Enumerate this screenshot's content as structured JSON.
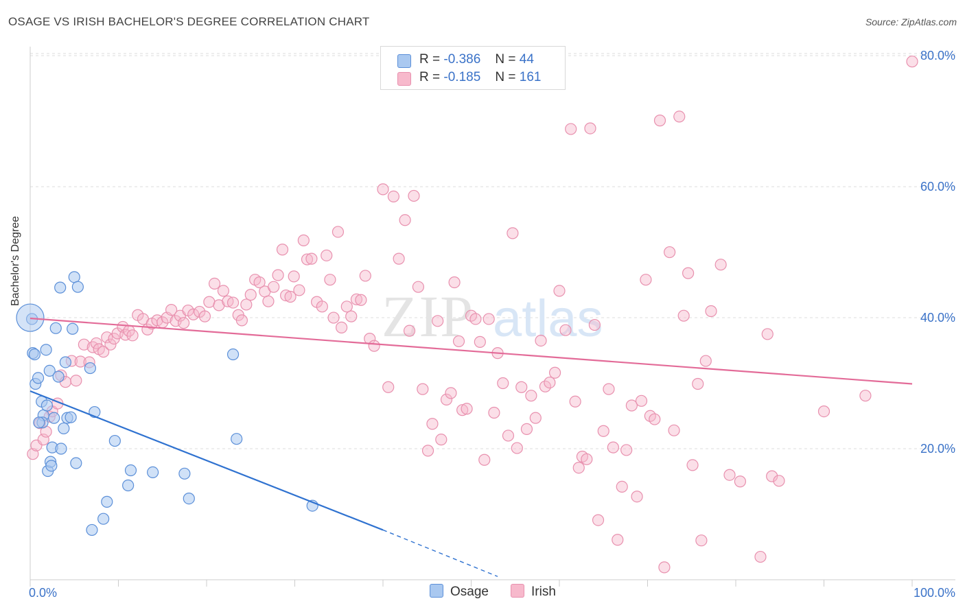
{
  "title": "OSAGE VS IRISH BACHELOR'S DEGREE CORRELATION CHART",
  "source": "Source: ZipAtlas.com",
  "watermark": {
    "zip": "ZIP",
    "atlas": "atlas"
  },
  "legend": {
    "r_label": "R =",
    "n_label": "N =",
    "osage": {
      "r": "-0.386",
      "n": "44"
    },
    "irish": {
      "r": "-0.185",
      "n": "161"
    }
  },
  "colors": {
    "osage_fill": "#a9c8f0",
    "osage_stroke": "#5b8fd8",
    "osage_line": "#2f72d0",
    "irish_fill": "#f7b9cc",
    "irish_stroke": "#e890ae",
    "irish_line": "#e36b98",
    "tick_label": "#3a72c8",
    "grid": "#dddddd"
  },
  "chart_data": {
    "type": "scatter",
    "title": "OSAGE VS IRISH BACHELOR'S DEGREE CORRELATION CHART",
    "xlabel": "",
    "ylabel": "Bachelor's Degree",
    "xlim": [
      0,
      100
    ],
    "ylim": [
      0,
      82
    ],
    "x_tick_labels": [
      "0.0%",
      "100.0%"
    ],
    "y_ticks": [
      20,
      40,
      60,
      80
    ],
    "y_tick_labels": [
      "20.0%",
      "40.0%",
      "60.0%",
      "80.0%"
    ],
    "grid": true,
    "series": [
      {
        "name": "Osage",
        "trend": {
          "x1": 0,
          "y1": 28.8,
          "x2": 40,
          "y2": 7.6,
          "dashed_to_x": 53,
          "dashed_to_y": 0.5
        },
        "points": [
          [
            0.2,
            39.8
          ],
          [
            0.3,
            34.6
          ],
          [
            0.6,
            29.9
          ],
          [
            0.9,
            30.8
          ],
          [
            1.3,
            27.2
          ],
          [
            1.5,
            25.1
          ],
          [
            1.4,
            24.0
          ],
          [
            1.8,
            35.1
          ],
          [
            1.9,
            26.6
          ],
          [
            2.0,
            16.6
          ],
          [
            2.2,
            31.9
          ],
          [
            2.3,
            18.0
          ],
          [
            2.4,
            17.4
          ],
          [
            2.5,
            20.2
          ],
          [
            2.7,
            24.7
          ],
          [
            2.9,
            38.4
          ],
          [
            3.2,
            31.0
          ],
          [
            3.4,
            44.6
          ],
          [
            3.5,
            20.0
          ],
          [
            3.8,
            23.1
          ],
          [
            4.0,
            33.2
          ],
          [
            4.2,
            24.7
          ],
          [
            4.6,
            24.8
          ],
          [
            4.8,
            38.3
          ],
          [
            5.0,
            46.2
          ],
          [
            5.2,
            17.8
          ],
          [
            5.4,
            44.7
          ],
          [
            6.8,
            32.3
          ],
          [
            7.0,
            7.6
          ],
          [
            7.3,
            25.6
          ],
          [
            8.3,
            9.3
          ],
          [
            8.7,
            11.9
          ],
          [
            9.6,
            21.2
          ],
          [
            11.1,
            14.4
          ],
          [
            11.4,
            16.7
          ],
          [
            13.9,
            16.4
          ],
          [
            17.5,
            16.2
          ],
          [
            18.0,
            12.4
          ],
          [
            23.0,
            34.4
          ],
          [
            23.4,
            21.5
          ],
          [
            32.0,
            11.3
          ],
          [
            1.0,
            24.0
          ],
          [
            0.5,
            34.4
          ],
          [
            0.0,
            40.0
          ]
        ]
      },
      {
        "name": "Irish",
        "trend": {
          "x1": 0,
          "y1": 39.9,
          "x2": 100,
          "y2": 29.9
        },
        "points": [
          [
            0.3,
            19.2
          ],
          [
            0.7,
            20.5
          ],
          [
            1.1,
            23.9
          ],
          [
            1.5,
            21.4
          ],
          [
            1.8,
            22.6
          ],
          [
            2.2,
            24.9
          ],
          [
            2.5,
            25.7
          ],
          [
            3.1,
            26.9
          ],
          [
            3.5,
            31.2
          ],
          [
            4.0,
            30.2
          ],
          [
            4.7,
            33.4
          ],
          [
            5.2,
            30.4
          ],
          [
            5.7,
            33.3
          ],
          [
            6.1,
            35.9
          ],
          [
            6.7,
            33.2
          ],
          [
            7.1,
            35.5
          ],
          [
            7.5,
            36.1
          ],
          [
            7.8,
            35.2
          ],
          [
            8.3,
            34.8
          ],
          [
            8.7,
            37.0
          ],
          [
            9.1,
            35.9
          ],
          [
            9.5,
            36.8
          ],
          [
            9.9,
            37.6
          ],
          [
            10.5,
            38.6
          ],
          [
            10.8,
            37.4
          ],
          [
            11.2,
            38.0
          ],
          [
            11.6,
            37.3
          ],
          [
            12.2,
            40.4
          ],
          [
            12.8,
            39.8
          ],
          [
            13.3,
            38.2
          ],
          [
            13.8,
            39.1
          ],
          [
            14.4,
            39.6
          ],
          [
            15.0,
            39.3
          ],
          [
            15.5,
            40.0
          ],
          [
            16.0,
            41.2
          ],
          [
            16.5,
            39.5
          ],
          [
            17.0,
            40.3
          ],
          [
            17.4,
            39.2
          ],
          [
            17.9,
            41.1
          ],
          [
            18.5,
            40.5
          ],
          [
            19.2,
            40.9
          ],
          [
            19.8,
            40.2
          ],
          [
            20.3,
            42.4
          ],
          [
            20.9,
            45.2
          ],
          [
            21.4,
            41.9
          ],
          [
            21.9,
            44.1
          ],
          [
            22.4,
            42.5
          ],
          [
            23.0,
            42.3
          ],
          [
            23.6,
            40.4
          ],
          [
            24.0,
            39.6
          ],
          [
            24.5,
            42.0
          ],
          [
            25.0,
            43.5
          ],
          [
            25.5,
            45.8
          ],
          [
            26.0,
            45.4
          ],
          [
            26.6,
            44.0
          ],
          [
            27.0,
            42.5
          ],
          [
            27.6,
            44.7
          ],
          [
            28.1,
            46.5
          ],
          [
            28.6,
            50.4
          ],
          [
            29.0,
            43.4
          ],
          [
            29.5,
            43.2
          ],
          [
            29.9,
            46.3
          ],
          [
            30.5,
            44.2
          ],
          [
            31.0,
            51.8
          ],
          [
            31.4,
            48.9
          ],
          [
            31.9,
            49.0
          ],
          [
            32.5,
            42.4
          ],
          [
            33.1,
            41.7
          ],
          [
            33.6,
            49.5
          ],
          [
            34.0,
            45.8
          ],
          [
            34.4,
            40.0
          ],
          [
            34.9,
            53.1
          ],
          [
            35.3,
            38.5
          ],
          [
            35.9,
            41.7
          ],
          [
            36.4,
            40.2
          ],
          [
            37.0,
            42.8
          ],
          [
            37.5,
            42.7
          ],
          [
            38.0,
            46.4
          ],
          [
            38.5,
            36.8
          ],
          [
            39.0,
            35.7
          ],
          [
            40.0,
            59.6
          ],
          [
            40.6,
            29.4
          ],
          [
            41.2,
            58.5
          ],
          [
            41.8,
            49.0
          ],
          [
            42.5,
            54.9
          ],
          [
            43.0,
            38.0
          ],
          [
            43.5,
            58.6
          ],
          [
            44.0,
            44.7
          ],
          [
            44.5,
            29.1
          ],
          [
            45.1,
            19.7
          ],
          [
            45.6,
            23.8
          ],
          [
            46.2,
            39.5
          ],
          [
            46.6,
            21.4
          ],
          [
            47.2,
            27.5
          ],
          [
            47.7,
            28.5
          ],
          [
            48.1,
            45.4
          ],
          [
            48.6,
            36.4
          ],
          [
            49.0,
            25.9
          ],
          [
            49.5,
            26.1
          ],
          [
            50.0,
            40.3
          ],
          [
            50.5,
            39.8
          ],
          [
            51.0,
            36.3
          ],
          [
            51.5,
            18.3
          ],
          [
            52.0,
            39.8
          ],
          [
            52.6,
            25.5
          ],
          [
            53.0,
            34.6
          ],
          [
            53.6,
            30.0
          ],
          [
            54.2,
            22.0
          ],
          [
            54.7,
            52.9
          ],
          [
            55.2,
            20.1
          ],
          [
            55.7,
            29.4
          ],
          [
            56.3,
            23.0
          ],
          [
            56.8,
            28.1
          ],
          [
            57.3,
            24.7
          ],
          [
            57.9,
            36.5
          ],
          [
            58.4,
            29.5
          ],
          [
            58.9,
            30.1
          ],
          [
            59.5,
            31.6
          ],
          [
            60.0,
            44.1
          ],
          [
            60.7,
            38.1
          ],
          [
            61.3,
            68.8
          ],
          [
            61.8,
            27.2
          ],
          [
            62.2,
            17.1
          ],
          [
            62.6,
            18.8
          ],
          [
            63.1,
            18.4
          ],
          [
            63.5,
            68.9
          ],
          [
            64.0,
            38.9
          ],
          [
            64.4,
            9.1
          ],
          [
            65.0,
            22.7
          ],
          [
            65.6,
            29.1
          ],
          [
            66.1,
            20.2
          ],
          [
            66.6,
            6.1
          ],
          [
            67.1,
            14.2
          ],
          [
            67.6,
            19.8
          ],
          [
            68.2,
            26.6
          ],
          [
            68.8,
            12.7
          ],
          [
            69.3,
            27.3
          ],
          [
            69.8,
            45.8
          ],
          [
            70.3,
            25.0
          ],
          [
            70.8,
            24.5
          ],
          [
            71.4,
            70.1
          ],
          [
            71.9,
            1.9
          ],
          [
            72.5,
            50.0
          ],
          [
            73.0,
            22.8
          ],
          [
            73.6,
            70.7
          ],
          [
            74.1,
            40.3
          ],
          [
            74.6,
            46.8
          ],
          [
            75.1,
            17.5
          ],
          [
            75.7,
            29.9
          ],
          [
            76.1,
            6.0
          ],
          [
            76.6,
            33.4
          ],
          [
            77.2,
            41.0
          ],
          [
            78.3,
            48.1
          ],
          [
            79.3,
            16.0
          ],
          [
            80.5,
            15.0
          ],
          [
            82.8,
            3.5
          ],
          [
            83.6,
            37.5
          ],
          [
            84.1,
            15.8
          ],
          [
            84.9,
            15.1
          ],
          [
            90.0,
            25.7
          ],
          [
            94.7,
            28.1
          ],
          [
            100.0,
            79.1
          ]
        ]
      }
    ]
  }
}
